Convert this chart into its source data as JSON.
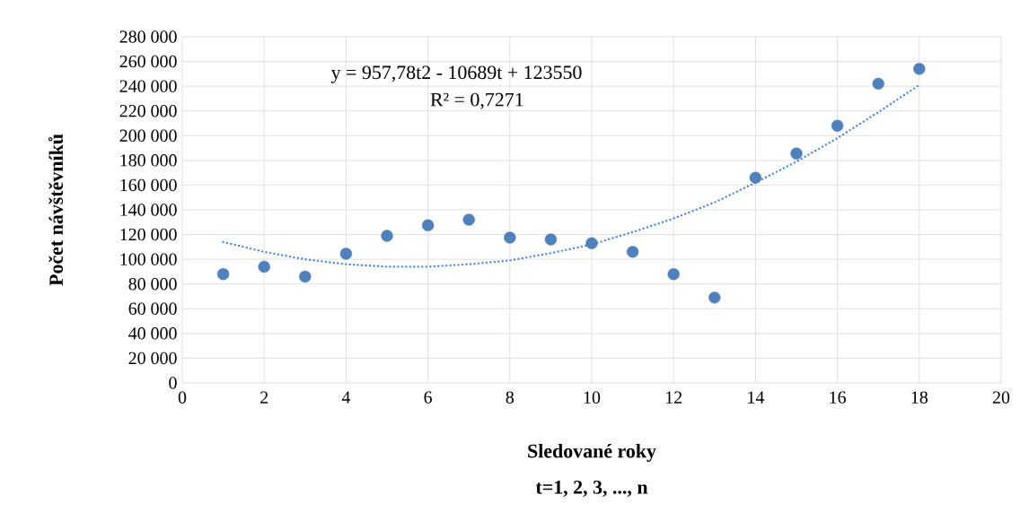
{
  "chart_data": {
    "type": "scatter",
    "xlabel": "Sledované roky",
    "ylabel": "Počet návštěvníků",
    "annotations": [
      "y = 957,78t2 - 10689t + 123550",
      "R² = 0,7271",
      "t=1, 2, 3, ..., n"
    ],
    "series": [
      {
        "color": "#4f81bd",
        "marker": "circle",
        "x": [
          1,
          2,
          3,
          4,
          5,
          6,
          7,
          8,
          9,
          10,
          11,
          12,
          13,
          14,
          15,
          16,
          17,
          18
        ],
        "values": [
          88000,
          94000,
          86000,
          104500,
          119000,
          127500,
          132000,
          117500,
          116000,
          113000,
          106000,
          88000,
          69000,
          166000,
          185500,
          208000,
          242000,
          254000
        ]
      },
      {
        "type": "line",
        "color": "#4a86e8",
        "marker": "none",
        "line_style": "dotted",
        "x": [
          1,
          2,
          3,
          4,
          5,
          6,
          7,
          8,
          9,
          10,
          11,
          12,
          13,
          14,
          15,
          16,
          17,
          18
        ],
        "values": [
          114000,
          106000,
          100000,
          96000,
          94000,
          94000,
          96000,
          99000,
          105000,
          112000,
          122000,
          133000,
          146000,
          162000,
          179000,
          198000,
          219000,
          241000
        ]
      }
    ],
    "xlim": [
      0,
      20
    ],
    "xticks": [
      0,
      2,
      4,
      6,
      8,
      10,
      12,
      14,
      16,
      18,
      20
    ],
    "ylim": [
      0,
      280000
    ],
    "yticks": [
      0,
      {
        "value": 20000,
        "label": "20 000"
      },
      {
        "value": 40000,
        "label": "40 000"
      },
      {
        "value": 60000,
        "label": "60 000"
      },
      {
        "value": 80000,
        "label": "80 000"
      },
      {
        "value": 100000,
        "label": "100 000"
      },
      {
        "value": 120000,
        "label": "120 000"
      },
      {
        "value": 140000,
        "label": "140 000"
      },
      {
        "value": 160000,
        "label": "160 000"
      },
      {
        "value": 180000,
        "label": "180 000"
      },
      {
        "value": 200000,
        "label": "200 000"
      },
      {
        "value": 220000,
        "label": "220 000"
      },
      {
        "value": 240000,
        "label": "240 000"
      },
      {
        "value": 260000,
        "label": "260 000"
      },
      {
        "value": 280000,
        "label": "280 000"
      }
    ],
    "grid": true
  }
}
